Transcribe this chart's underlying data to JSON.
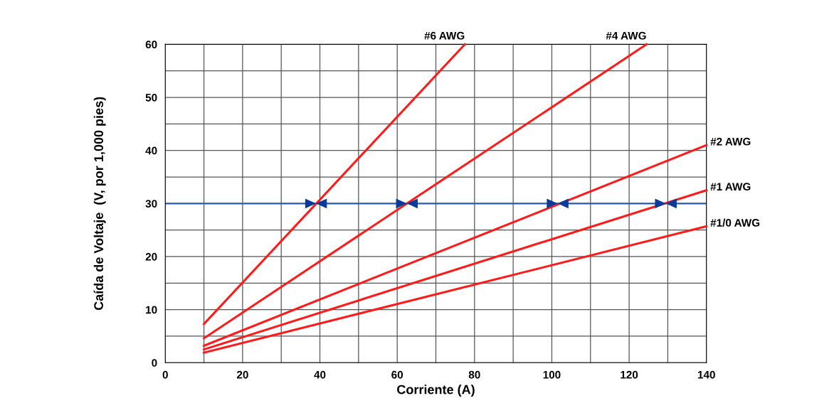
{
  "chart_data": {
    "type": "line",
    "xlabel": "Corriente (A)",
    "ylabel": "Caída de Voltaje  (V, por 1,000 pies)",
    "xlim": [
      0,
      140
    ],
    "ylim": [
      0,
      60
    ],
    "xticks": [
      0,
      {
        "value": 10,
        "label": null
      },
      20,
      {
        "value": 30,
        "label": null
      },
      40,
      {
        "value": 50,
        "label": null
      },
      60,
      {
        "value": 70,
        "label": null
      },
      80,
      {
        "value": 90,
        "label": null
      },
      100,
      {
        "value": 110,
        "label": null
      },
      120,
      {
        "value": 130,
        "label": null
      },
      140
    ],
    "yticks": [
      0,
      {
        "value": 5,
        "label": null
      },
      10,
      {
        "value": 15,
        "label": null
      },
      20,
      {
        "value": 25,
        "label": null
      },
      30,
      {
        "value": 35,
        "label": null
      },
      40,
      {
        "value": 45,
        "label": null
      },
      50,
      {
        "value": 55,
        "label": null
      },
      60
    ],
    "grid": true,
    "line_style": "solid",
    "marker": "none",
    "series": [
      {
        "name": "#6 AWG",
        "color": "#ff1a1a",
        "x": [
          10,
          77.5
        ],
        "values": [
          7.3,
          60
        ]
      },
      {
        "name": "#4 AWG",
        "color": "#ff1a1a",
        "x": [
          10,
          124.5
        ],
        "values": [
          4.6,
          60
        ]
      },
      {
        "name": "#2 AWG",
        "color": "#ff1a1a",
        "x": [
          10,
          140
        ],
        "values": [
          3.2,
          41
        ]
      },
      {
        "name": "#1 AWG",
        "color": "#ff1a1a",
        "x": [
          10,
          140
        ],
        "values": [
          2.5,
          32.5
        ]
      },
      {
        "name": "#1/0 AWG",
        "color": "#ff1a1a",
        "x": [
          10,
          140
        ],
        "values": [
          1.9,
          25.7
        ]
      },
      {
        "type": "scatter",
        "marker": "triangle",
        "color": "#0a3a9a",
        "x": [
          39,
          62.5,
          101.5,
          129.5
        ],
        "values": [
          30,
          30,
          30,
          30
        ]
      }
    ],
    "ref_lines": [
      {
        "axis": "y",
        "value": 30,
        "color": "#2a5db0",
        "line_style": "solid"
      }
    ]
  }
}
